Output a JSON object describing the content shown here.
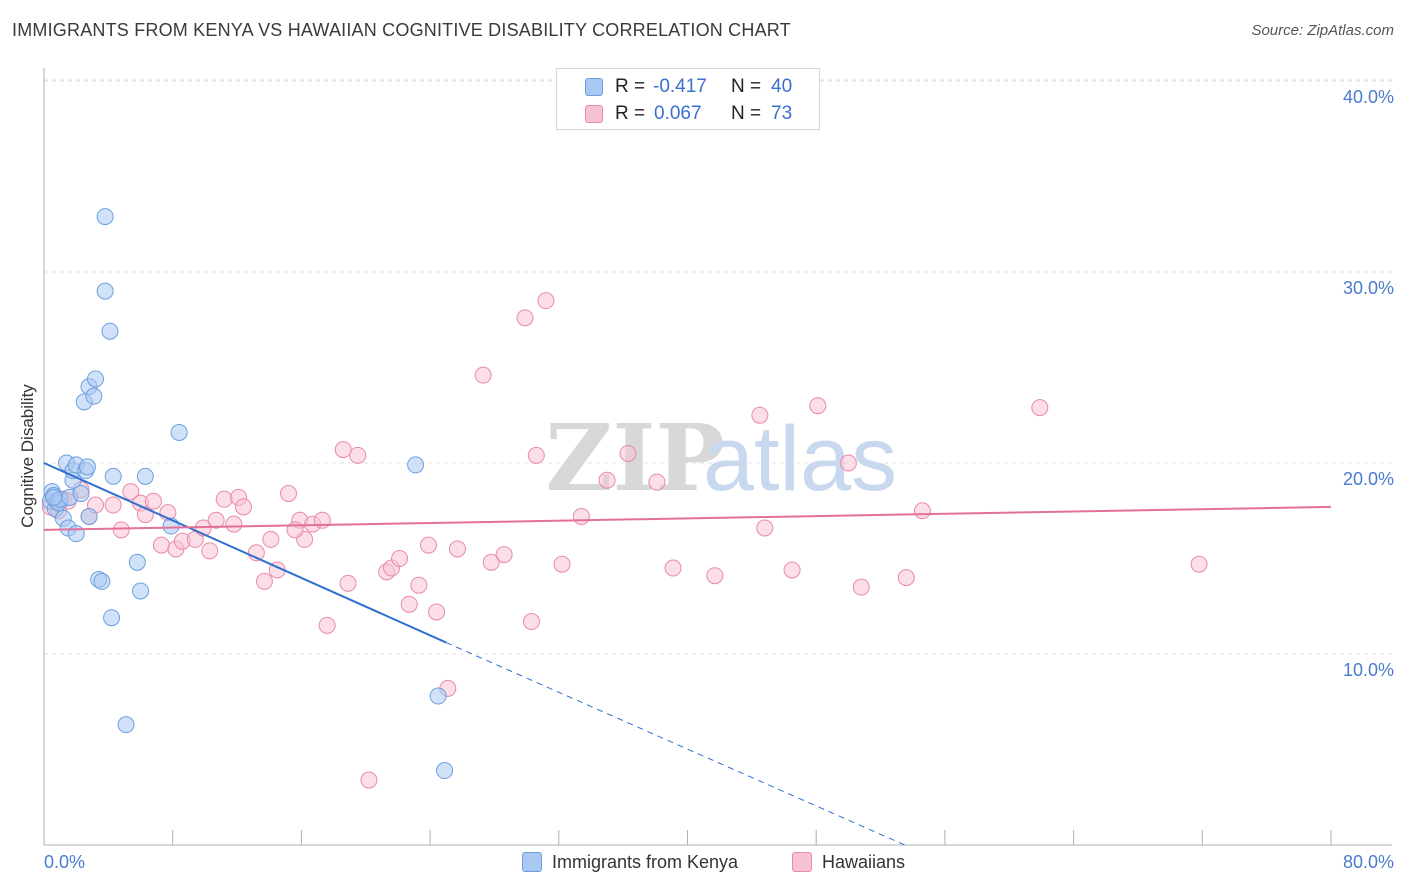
{
  "header": {
    "title": "IMMIGRANTS FROM KENYA VS HAWAIIAN COGNITIVE DISABILITY CORRELATION CHART",
    "source": "Source: ZipAtlas.com"
  },
  "watermark": {
    "part1": "ZIP",
    "part2": "atlas"
  },
  "stats": {
    "r_label": "R =",
    "n_label": "N =",
    "kenya": {
      "r": "-0.417",
      "n": "40",
      "color": "#a9c8f2",
      "border": "#6c9fe0"
    },
    "hawaiians": {
      "r": "0.067",
      "n": "73",
      "color": "#f7c2d3",
      "border": "#e98aa8"
    }
  },
  "legend": {
    "kenya": "Immigrants from Kenya",
    "hawaiians": "Hawaiians"
  },
  "axes": {
    "ylabel": "Cognitive Disability",
    "yticks": [
      "10.0%",
      "20.0%",
      "30.0%",
      "40.0%"
    ],
    "xticks": [
      "0.0%",
      "80.0%"
    ]
  },
  "chart_data": {
    "type": "scatter",
    "title": "IMMIGRANTS FROM KENYA VS HAWAIIAN COGNITIVE DISABILITY CORRELATION CHART",
    "xlabel": "",
    "ylabel": "Cognitive Disability",
    "xlim": [
      0,
      80
    ],
    "ylim": [
      0,
      42
    ],
    "grid": true,
    "series": [
      {
        "name": "Immigrants from Kenya",
        "color": "#6c9fe0",
        "fill": "#a9c8f2",
        "r": -0.417,
        "n": 40,
        "trend": {
          "x0": 0,
          "y0": 20.0,
          "x1": 25,
          "y1": 10.6,
          "dash_to_x": 53.5,
          "dash_to_y": 0
        },
        "points": [
          [
            0.4,
            18.0
          ],
          [
            0.5,
            18.5
          ],
          [
            0.6,
            18.3
          ],
          [
            0.7,
            17.6
          ],
          [
            0.8,
            18.0
          ],
          [
            0.9,
            17.9
          ],
          [
            1.0,
            18.1
          ],
          [
            1.2,
            17.1
          ],
          [
            1.4,
            20.0
          ],
          [
            1.5,
            16.6
          ],
          [
            1.6,
            18.2
          ],
          [
            1.8,
            19.1
          ],
          [
            1.8,
            19.6
          ],
          [
            2.0,
            19.9
          ],
          [
            2.0,
            16.3
          ],
          [
            2.3,
            18.4
          ],
          [
            2.5,
            23.2
          ],
          [
            2.6,
            19.6
          ],
          [
            2.7,
            19.8
          ],
          [
            2.8,
            17.2
          ],
          [
            2.8,
            24.0
          ],
          [
            3.1,
            23.5
          ],
          [
            3.2,
            24.4
          ],
          [
            3.4,
            13.9
          ],
          [
            3.6,
            13.8
          ],
          [
            3.8,
            32.9
          ],
          [
            3.8,
            29.0
          ],
          [
            4.1,
            26.9
          ],
          [
            4.2,
            11.9
          ],
          [
            4.3,
            19.3
          ],
          [
            5.1,
            6.3
          ],
          [
            5.8,
            14.8
          ],
          [
            6.0,
            13.3
          ],
          [
            6.3,
            19.3
          ],
          [
            7.9,
            16.7
          ],
          [
            8.4,
            21.6
          ],
          [
            23.1,
            19.9
          ],
          [
            24.5,
            7.8
          ],
          [
            24.9,
            3.9
          ],
          [
            0.6,
            18.2
          ]
        ]
      },
      {
        "name": "Hawaiians",
        "color": "#e98aa8",
        "fill": "#f7c2d3",
        "r": 0.067,
        "n": 73,
        "trend": {
          "x0": 0,
          "y0": 16.5,
          "x1": 80,
          "y1": 17.7
        },
        "points": [
          [
            0.4,
            17.7
          ],
          [
            0.9,
            17.5
          ],
          [
            1.2,
            18.1
          ],
          [
            1.5,
            18.0
          ],
          [
            2.3,
            18.6
          ],
          [
            2.8,
            17.2
          ],
          [
            3.2,
            17.8
          ],
          [
            4.3,
            17.8
          ],
          [
            4.8,
            16.5
          ],
          [
            5.4,
            18.5
          ],
          [
            6.0,
            17.9
          ],
          [
            6.3,
            17.3
          ],
          [
            6.8,
            18.0
          ],
          [
            7.3,
            15.7
          ],
          [
            7.7,
            17.4
          ],
          [
            8.2,
            15.5
          ],
          [
            8.6,
            15.9
          ],
          [
            9.4,
            16.0
          ],
          [
            9.9,
            16.6
          ],
          [
            10.3,
            15.4
          ],
          [
            10.7,
            17.0
          ],
          [
            11.2,
            18.1
          ],
          [
            11.8,
            16.8
          ],
          [
            12.1,
            18.2
          ],
          [
            12.4,
            17.7
          ],
          [
            13.2,
            15.3
          ],
          [
            13.7,
            13.8
          ],
          [
            14.1,
            16.0
          ],
          [
            14.5,
            14.4
          ],
          [
            15.2,
            18.4
          ],
          [
            15.9,
            17.0
          ],
          [
            16.2,
            16.0
          ],
          [
            16.7,
            16.8
          ],
          [
            17.3,
            17.0
          ],
          [
            17.6,
            11.5
          ],
          [
            18.6,
            20.7
          ],
          [
            18.9,
            13.7
          ],
          [
            19.5,
            20.4
          ],
          [
            20.2,
            3.4
          ],
          [
            21.3,
            14.3
          ],
          [
            21.6,
            14.5
          ],
          [
            22.1,
            15.0
          ],
          [
            22.7,
            12.6
          ],
          [
            23.3,
            13.6
          ],
          [
            23.9,
            15.7
          ],
          [
            24.4,
            12.2
          ],
          [
            25.1,
            8.2
          ],
          [
            25.7,
            15.5
          ],
          [
            27.3,
            24.6
          ],
          [
            27.8,
            14.8
          ],
          [
            28.6,
            15.2
          ],
          [
            29.9,
            27.6
          ],
          [
            30.3,
            11.7
          ],
          [
            30.6,
            20.4
          ],
          [
            31.2,
            28.5
          ],
          [
            32.2,
            14.7
          ],
          [
            33.4,
            17.2
          ],
          [
            35.0,
            19.1
          ],
          [
            36.3,
            20.5
          ],
          [
            38.1,
            19.0
          ],
          [
            39.1,
            14.5
          ],
          [
            41.7,
            14.1
          ],
          [
            44.5,
            22.5
          ],
          [
            44.8,
            16.6
          ],
          [
            46.5,
            14.4
          ],
          [
            48.1,
            23.0
          ],
          [
            50.0,
            20.0
          ],
          [
            50.8,
            13.5
          ],
          [
            53.6,
            14.0
          ],
          [
            54.6,
            17.5
          ],
          [
            61.9,
            22.9
          ],
          [
            71.8,
            14.7
          ],
          [
            15.6,
            16.5
          ]
        ]
      }
    ]
  }
}
